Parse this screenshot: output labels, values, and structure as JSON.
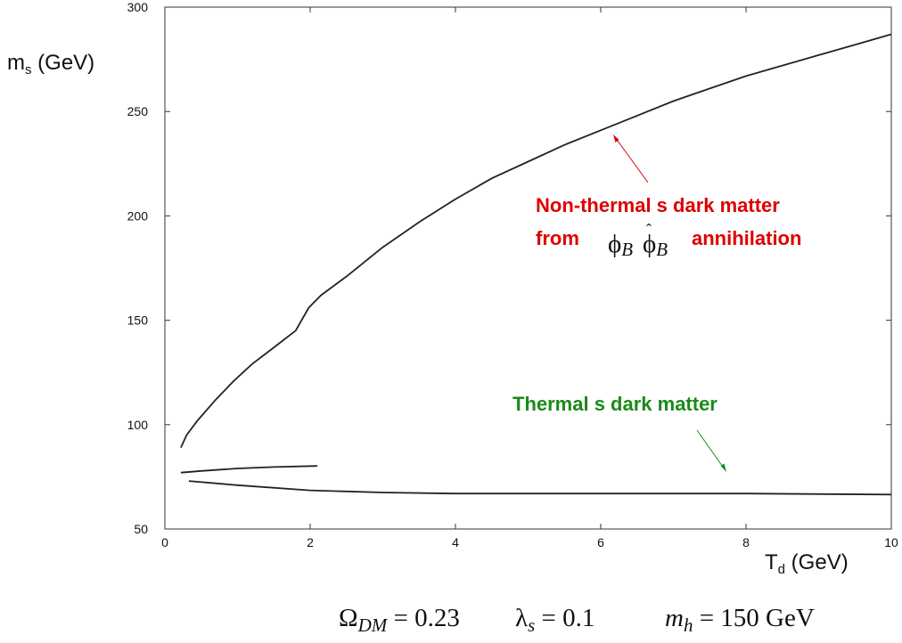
{
  "chart_data": {
    "type": "line",
    "xlabel": {
      "base": "T",
      "sub": "d",
      "unit": " (GeV)"
    },
    "ylabel": {
      "base": "m",
      "sub": "s",
      "unit": " (GeV)"
    },
    "xlim": [
      0,
      10
    ],
    "ylim": [
      50,
      300
    ],
    "xticks": [
      "0",
      "2",
      "4",
      "6",
      "8",
      "10"
    ],
    "yticks": [
      "50",
      "100",
      "150",
      "200",
      "250",
      "300"
    ],
    "grid": false,
    "series": [
      {
        "color": "#222222",
        "x": [
          0.22,
          0.3,
          0.45,
          0.7,
          0.95,
          1.2,
          1.5,
          1.8,
          1.98,
          2.15,
          2.5,
          3.0,
          3.5,
          4.0,
          4.5,
          5.0,
          5.5,
          6.0,
          6.5,
          7.0,
          7.5,
          8.0,
          8.5,
          9.0,
          9.5,
          10.0
        ],
        "y": [
          89,
          95,
          102,
          112,
          121,
          129,
          137,
          145,
          156,
          162,
          171,
          185,
          197,
          208,
          218,
          226,
          234,
          241,
          248,
          255,
          261,
          267,
          272,
          277,
          282,
          287
        ]
      },
      {
        "color": "#222222",
        "x": [
          0.22,
          0.5,
          1.0,
          1.5,
          2.1
        ],
        "y": [
          77,
          77.8,
          79,
          79.7,
          80.2
        ]
      },
      {
        "color": "#222222",
        "x": [
          0.33,
          1.0,
          2.0,
          3.0,
          4.0,
          6.0,
          8.0,
          10.0
        ],
        "y": [
          73,
          71,
          68.5,
          67.5,
          67,
          67,
          67,
          66.5
        ]
      }
    ],
    "annotations": [
      {
        "text": "Non-thermal s dark matter",
        "color": "#dd0000"
      },
      {
        "text": "from",
        "color": "#dd0000"
      },
      {
        "text": "annihilation",
        "color": "#dd0000"
      },
      {
        "text": "Thermal s dark matter",
        "color": "#1a8a1a"
      }
    ]
  },
  "math": {
    "phi": "ϕ",
    "sub_b": "B",
    "omega": "Ω",
    "omega_sub": "DM",
    "omega_val": " = 0.23",
    "lambda": "λ",
    "lambda_sub": "s",
    "lambda_val": " = 0.1",
    "mh": "m",
    "mh_sub": "h",
    "mh_val": " = 150 GeV"
  }
}
